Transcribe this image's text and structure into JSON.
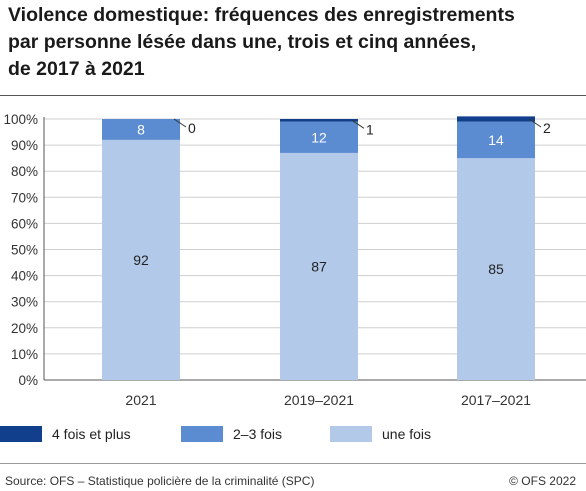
{
  "title_lines": [
    "Violence domestique: fréquences des enregistrements",
    "par personne lésée dans une, trois et cinq années,",
    "de 2017 à 2021"
  ],
  "source": "Source: OFS – Statistique policière de la criminalité (SPC)",
  "copyright": "© OFS 2022",
  "chart_data": {
    "type": "bar",
    "stacked": true,
    "categories": [
      "2021",
      "2019–2021",
      "2017–2021"
    ],
    "series": [
      {
        "name": "une fois",
        "values": [
          92,
          87,
          85
        ],
        "color": "#b3c9ea"
      },
      {
        "name": "2–3 fois",
        "values": [
          8,
          12,
          14
        ],
        "color": "#5b8bd0"
      },
      {
        "name": "4 fois et plus",
        "values": [
          0,
          1,
          2
        ],
        "color": "#123f8c"
      }
    ],
    "legend_order": [
      "4 fois et plus",
      "2–3 fois",
      "une fois"
    ],
    "yticks": [
      "0%",
      "10%",
      "20%",
      "30%",
      "40%",
      "50%",
      "60%",
      "70%",
      "80%",
      "90%",
      "100%"
    ],
    "ylim": [
      0,
      100
    ],
    "grid": true,
    "legend_position": "bottom"
  }
}
